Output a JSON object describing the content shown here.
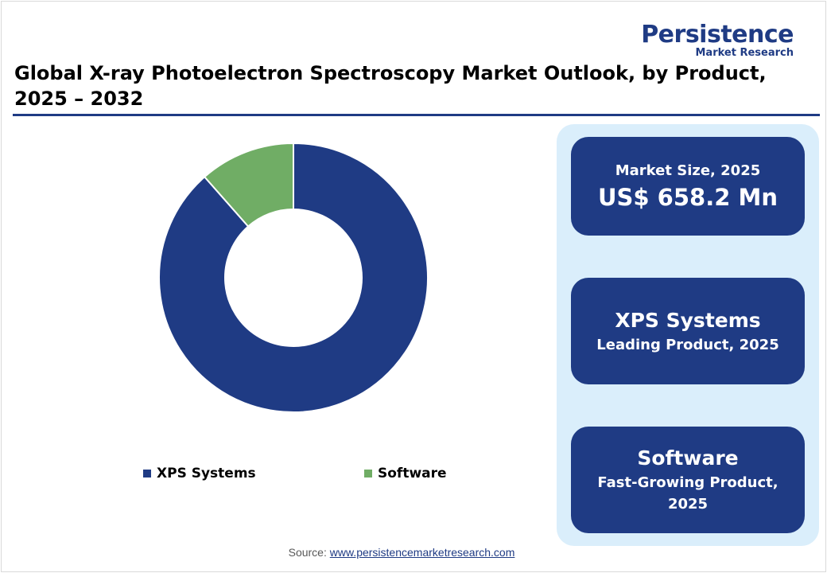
{
  "logo": {
    "main": "Persistence",
    "sub": "Market Research"
  },
  "title_line1": "Global X-ray Photoelectron Spectroscopy Market Outlook, by Product,",
  "title_line2": "2025 – 2032",
  "colors": {
    "navy": "#1f3b84",
    "green": "#70ad65",
    "panel": "#daeefb"
  },
  "chart_data": {
    "type": "pie",
    "variant": "donut",
    "categories": [
      "XPS Systems",
      "Software"
    ],
    "values": [
      88.5,
      11.5
    ],
    "colors": [
      "#1f3b84",
      "#70ad65"
    ],
    "legend_position": "bottom"
  },
  "legend": [
    {
      "label": "XPS Systems",
      "color": "#1f3b84"
    },
    {
      "label": "Software",
      "color": "#70ad65"
    }
  ],
  "cards": {
    "market": {
      "label": "Market Size, 2025",
      "value": "US$ 658.2 Mn"
    },
    "leading": {
      "name": "XPS Systems",
      "caption": "Leading Product, 2025"
    },
    "fast": {
      "name": "Software",
      "caption_line1": "Fast-Growing Product,",
      "caption_line2": "2025"
    }
  },
  "source": {
    "prefix": "Source: ",
    "link": "www.persistencemarketresearch.com"
  }
}
